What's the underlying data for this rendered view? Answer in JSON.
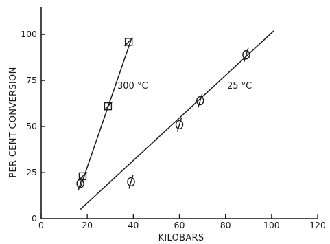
{
  "chart_data": {
    "type": "scatter",
    "title": "",
    "xlabel": "KILOBARS",
    "ylabel": "PER CENT CONVERSION",
    "xlim": [
      0,
      120
    ],
    "ylim": [
      0,
      115
    ],
    "xticks": [
      "0",
      "20",
      "40",
      "60",
      "80",
      "100",
      "120"
    ],
    "yticks": [
      "0",
      "25",
      "50",
      "75",
      "100"
    ],
    "grid": false,
    "series": [
      {
        "name": "300 °C",
        "marker": "square",
        "points": [
          [
            18,
            23
          ],
          [
            29,
            61
          ],
          [
            38,
            96
          ]
        ],
        "fit_line": [
          [
            17,
            17
          ],
          [
            39,
            97
          ]
        ]
      },
      {
        "name": "25 °C",
        "marker": "circle-slash",
        "points": [
          [
            17,
            19
          ],
          [
            39,
            20
          ],
          [
            60,
            51
          ],
          [
            69,
            64
          ],
          [
            89,
            89
          ]
        ],
        "fit_line": [
          [
            17,
            5
          ],
          [
            101,
            102
          ]
        ]
      }
    ],
    "annotations": [
      "300 °C",
      "25 °C"
    ]
  }
}
